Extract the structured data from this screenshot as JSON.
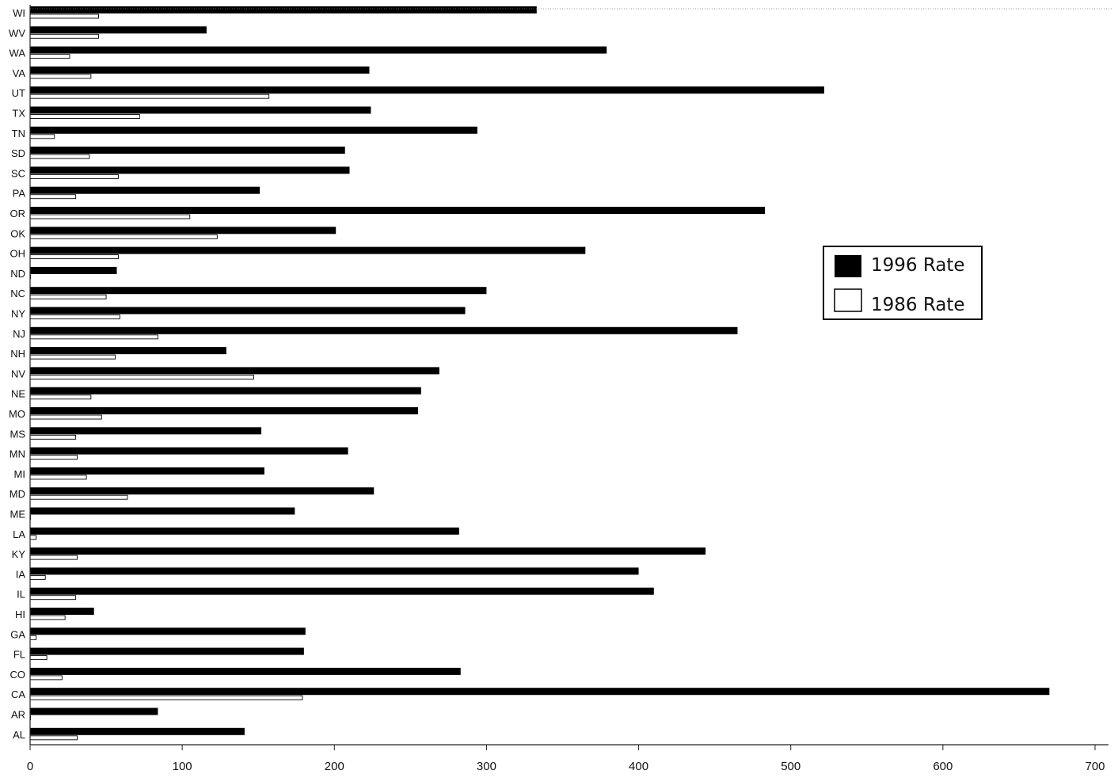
{
  "chart_data": {
    "type": "bar",
    "orientation": "horizontal",
    "categories": [
      "WI",
      "WV",
      "WA",
      "VA",
      "UT",
      "TX",
      "TN",
      "SD",
      "SC",
      "PA",
      "OR",
      "OK",
      "OH",
      "ND",
      "NC",
      "NY",
      "NJ",
      "NH",
      "NV",
      "NE",
      "MO",
      "MS",
      "MN",
      "MI",
      "MD",
      "ME",
      "LA",
      "KY",
      "IA",
      "IL",
      "HI",
      "GA",
      "FL",
      "CO",
      "CA",
      "AR",
      "AL"
    ],
    "series": [
      {
        "name": "1996 Rate",
        "color": "#000000",
        "values": [
          333,
          116,
          379,
          223,
          522,
          224,
          294,
          207,
          210,
          151,
          483,
          201,
          365,
          57,
          300,
          286,
          465,
          129,
          269,
          257,
          255,
          152,
          209,
          154,
          226,
          174,
          282,
          444,
          400,
          410,
          42,
          181,
          180,
          283,
          670,
          84,
          141
        ]
      },
      {
        "name": "1986 Rate",
        "color": "#ffffff",
        "values": [
          45,
          45,
          26,
          40,
          157,
          72,
          16,
          39,
          58,
          30,
          105,
          123,
          58,
          0,
          50,
          59,
          84,
          56,
          147,
          40,
          47,
          30,
          31,
          37,
          64,
          0,
          4,
          31,
          10,
          30,
          23,
          4,
          11,
          21,
          179,
          0,
          31
        ]
      }
    ],
    "xlim": [
      0,
      700
    ],
    "xticks": [
      0,
      100,
      200,
      300,
      400,
      500,
      600,
      700
    ],
    "title": "",
    "xlabel": "",
    "ylabel": "",
    "legend_position": "right",
    "grid": false
  }
}
